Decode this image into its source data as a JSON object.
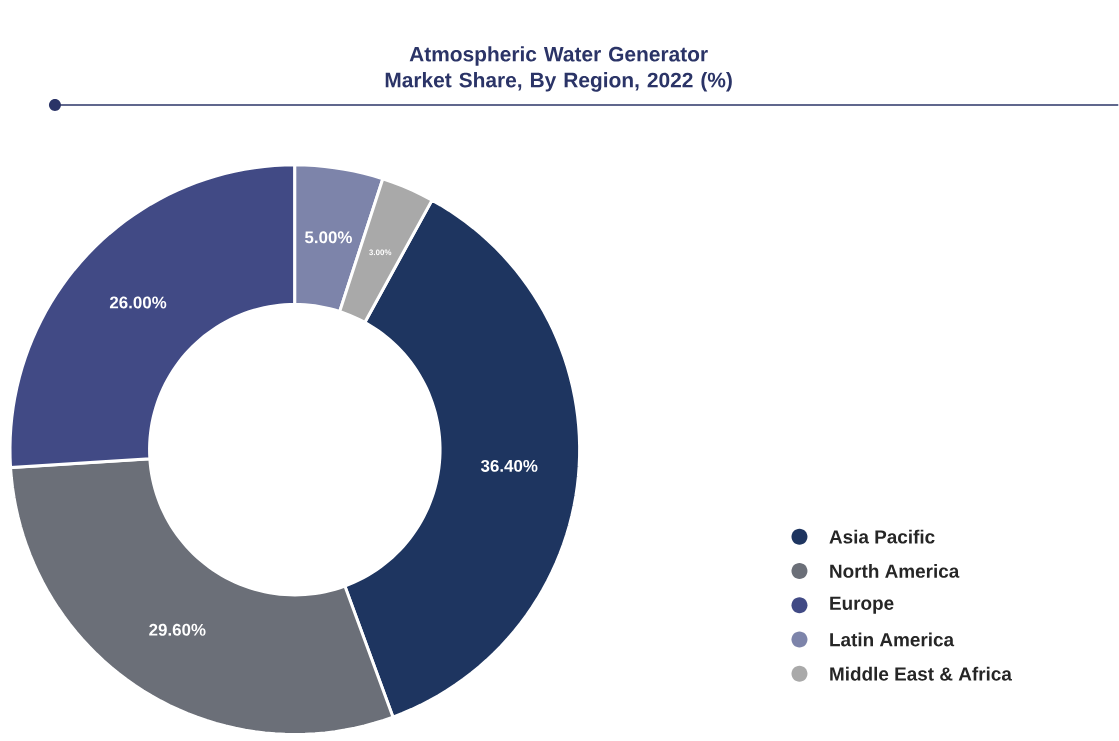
{
  "chart_data": {
    "type": "donut",
    "title": "Atmospheric Water Generator Market Share, By Region, 2022 (%)",
    "categories": [
      "Asia Pacific",
      "North America",
      "Europe",
      "Latin America",
      "Middle East & Africa"
    ],
    "values": [
      36.4,
      29.6,
      26.0,
      5.0,
      3.0
    ],
    "value_labels": [
      "36.40%",
      "29.60%",
      "26.00%",
      "5.00%",
      "3.00%"
    ],
    "colors": [
      "#1e3560",
      "#6b6f78",
      "#414a85",
      "#7d84aa",
      "#a9a9a9"
    ],
    "legend": "right"
  }
}
